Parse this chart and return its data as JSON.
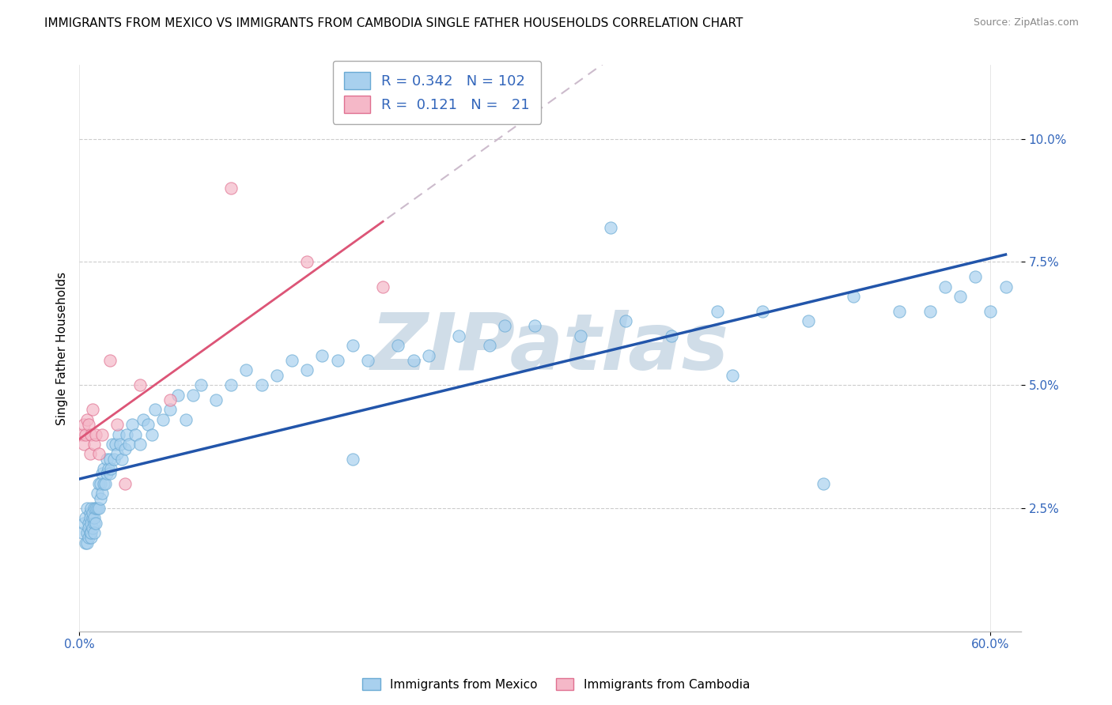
{
  "title": "IMMIGRANTS FROM MEXICO VS IMMIGRANTS FROM CAMBODIA SINGLE FATHER HOUSEHOLDS CORRELATION CHART",
  "source": "Source: ZipAtlas.com",
  "ylabel": "Single Father Households",
  "yticks": [
    "2.5%",
    "5.0%",
    "7.5%",
    "10.0%"
  ],
  "ytick_vals": [
    0.025,
    0.05,
    0.075,
    0.1
  ],
  "xlim": [
    0.0,
    0.62
  ],
  "ylim": [
    0.0,
    0.115
  ],
  "legend_blue_R": "0.342",
  "legend_blue_N": "102",
  "legend_pink_R": "0.121",
  "legend_pink_N": "21",
  "blue_color": "#a8d0ee",
  "blue_edge": "#6aaad4",
  "pink_color": "#f5b8c8",
  "pink_edge": "#e07090",
  "trendline_blue_color": "#2255aa",
  "trendline_pink_color": "#dd5577",
  "trendline_pink_dashed_color": "#ccbbcc",
  "watermark_color": "#d0dde8",
  "blue_scatter_x": [
    0.002,
    0.003,
    0.004,
    0.004,
    0.005,
    0.005,
    0.005,
    0.006,
    0.006,
    0.006,
    0.007,
    0.007,
    0.007,
    0.008,
    0.008,
    0.008,
    0.008,
    0.009,
    0.009,
    0.009,
    0.01,
    0.01,
    0.01,
    0.01,
    0.011,
    0.011,
    0.012,
    0.012,
    0.013,
    0.013,
    0.014,
    0.014,
    0.015,
    0.015,
    0.016,
    0.016,
    0.017,
    0.018,
    0.018,
    0.019,
    0.02,
    0.02,
    0.021,
    0.022,
    0.023,
    0.024,
    0.025,
    0.026,
    0.027,
    0.028,
    0.03,
    0.031,
    0.033,
    0.035,
    0.037,
    0.04,
    0.042,
    0.045,
    0.048,
    0.05,
    0.055,
    0.06,
    0.065,
    0.07,
    0.075,
    0.08,
    0.09,
    0.1,
    0.11,
    0.12,
    0.13,
    0.14,
    0.15,
    0.16,
    0.17,
    0.18,
    0.19,
    0.21,
    0.23,
    0.25,
    0.27,
    0.3,
    0.33,
    0.36,
    0.39,
    0.42,
    0.45,
    0.48,
    0.51,
    0.54,
    0.56,
    0.57,
    0.58,
    0.59,
    0.6,
    0.61,
    0.35,
    0.28,
    0.22,
    0.18,
    0.43,
    0.49
  ],
  "blue_scatter_y": [
    0.02,
    0.022,
    0.018,
    0.023,
    0.02,
    0.025,
    0.018,
    0.022,
    0.019,
    0.021,
    0.024,
    0.02,
    0.023,
    0.019,
    0.022,
    0.025,
    0.02,
    0.023,
    0.021,
    0.024,
    0.022,
    0.025,
    0.02,
    0.023,
    0.025,
    0.022,
    0.025,
    0.028,
    0.025,
    0.03,
    0.027,
    0.03,
    0.028,
    0.032,
    0.03,
    0.033,
    0.03,
    0.032,
    0.035,
    0.033,
    0.032,
    0.035,
    0.033,
    0.038,
    0.035,
    0.038,
    0.036,
    0.04,
    0.038,
    0.035,
    0.037,
    0.04,
    0.038,
    0.042,
    0.04,
    0.038,
    0.043,
    0.042,
    0.04,
    0.045,
    0.043,
    0.045,
    0.048,
    0.043,
    0.048,
    0.05,
    0.047,
    0.05,
    0.053,
    0.05,
    0.052,
    0.055,
    0.053,
    0.056,
    0.055,
    0.058,
    0.055,
    0.058,
    0.056,
    0.06,
    0.058,
    0.062,
    0.06,
    0.063,
    0.06,
    0.065,
    0.065,
    0.063,
    0.068,
    0.065,
    0.065,
    0.07,
    0.068,
    0.072,
    0.065,
    0.07,
    0.082,
    0.062,
    0.055,
    0.035,
    0.052,
    0.03
  ],
  "pink_scatter_x": [
    0.002,
    0.003,
    0.003,
    0.004,
    0.005,
    0.006,
    0.007,
    0.008,
    0.009,
    0.01,
    0.011,
    0.013,
    0.015,
    0.02,
    0.025,
    0.03,
    0.04,
    0.06,
    0.1,
    0.15,
    0.2
  ],
  "pink_scatter_y": [
    0.04,
    0.042,
    0.038,
    0.04,
    0.043,
    0.042,
    0.036,
    0.04,
    0.045,
    0.038,
    0.04,
    0.036,
    0.04,
    0.055,
    0.042,
    0.03,
    0.05,
    0.047,
    0.09,
    0.075,
    0.07
  ]
}
